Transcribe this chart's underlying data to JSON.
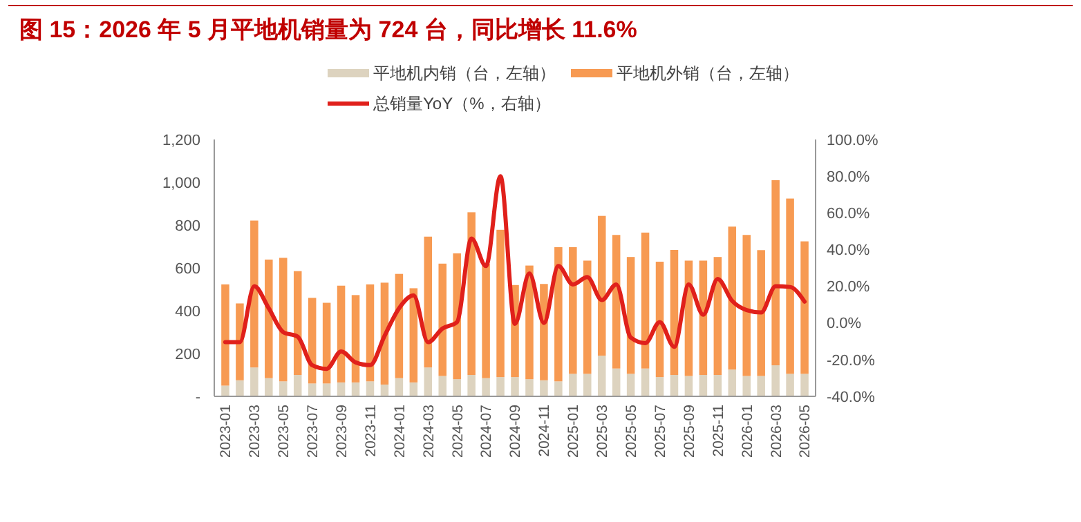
{
  "chart_data": {
    "type": "bar",
    "stacked": true,
    "title": "图 15：2026 年 5 月平地机销量为 724 台，同比增长 11.6%",
    "categories": [
      "2023-01",
      null,
      "2023-03",
      null,
      "2023-05",
      null,
      "2023-07",
      null,
      "2023-09",
      null,
      "2023-11",
      null,
      "2024-01",
      null,
      "2024-03",
      null,
      "2024-05",
      null,
      "2024-07",
      null,
      "2024-09",
      null,
      "2024-11",
      null,
      "2025-01",
      null,
      "2025-03",
      null,
      "2025-05",
      null,
      "2025-07",
      null,
      "2025-09",
      null,
      "2025-11",
      null,
      "2026-01",
      null,
      "2026-03",
      null,
      "2026-05"
    ],
    "series": [
      {
        "name": "平地机内销（台，左轴）",
        "color": "#ddd3bf",
        "values": [
          50,
          75,
          135,
          85,
          70,
          100,
          60,
          60,
          65,
          65,
          70,
          55,
          85,
          65,
          135,
          95,
          80,
          100,
          85,
          90,
          90,
          80,
          75,
          70,
          105,
          105,
          190,
          130,
          105,
          130,
          90,
          100,
          95,
          100,
          100,
          125,
          95,
          95,
          145,
          105,
          105
        ]
      },
      {
        "name": "平地机外销（台，左轴）",
        "color": "#f79a52",
        "values": [
          473,
          359,
          686,
          554,
          577,
          485,
          400,
          377,
          452,
          408,
          453,
          476,
          487,
          440,
          611,
          525,
          588,
          760,
          535,
          688,
          430,
          531,
          450,
          627,
          592,
          529,
          653,
          624,
          546,
          635,
          539,
          584,
          539,
          534,
          551,
          668,
          659,
          588,
          865,
          819,
          619
        ]
      },
      {
        "name": "总销量YoY（%，右轴）",
        "type": "line",
        "axis": "y2",
        "color": "#e0201b",
        "values": [
          -10.5,
          -10.5,
          20,
          8,
          -5,
          -7.5,
          -23,
          -25,
          -15.5,
          -21.5,
          -23,
          -7,
          8,
          15,
          -10.5,
          -3,
          0.5,
          46,
          31,
          80,
          -0.5,
          27,
          0,
          31,
          21,
          25,
          12.5,
          21,
          -8,
          -11,
          0.5,
          -13,
          21,
          4.5,
          24,
          12,
          7,
          5.7,
          20,
          19.6,
          11.6
        ]
      }
    ],
    "ylim": [
      0,
      1200
    ],
    "yticks": [
      {
        "value": 0,
        "label": "-"
      },
      200,
      400,
      600,
      800,
      {
        "value": 1000,
        "label": "1,000"
      },
      {
        "value": 1200,
        "label": "1,200"
      }
    ],
    "y2lim": [
      -40,
      100
    ],
    "y2ticks": [
      {
        "value": -40,
        "label": "-40.0%"
      },
      {
        "value": -20,
        "label": "-20.0%"
      },
      {
        "value": 0,
        "label": "0.0%"
      },
      {
        "value": 20,
        "label": "20.0%"
      },
      {
        "value": 40,
        "label": "40.0%"
      },
      {
        "value": 60,
        "label": "60.0%"
      },
      {
        "value": 80,
        "label": "80.0%"
      },
      {
        "value": 100,
        "label": "100.0%"
      }
    ],
    "legend": "top",
    "grid": false
  }
}
